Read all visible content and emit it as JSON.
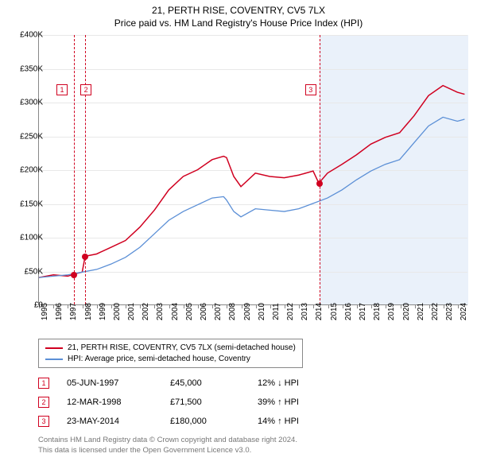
{
  "title_line1": "21, PERTH RISE, COVENTRY, CV5 7LX",
  "title_line2": "Price paid vs. HM Land Registry's House Price Index (HPI)",
  "chart": {
    "type": "line",
    "xlim": [
      1995,
      2024.7
    ],
    "ylim": [
      0,
      400000
    ],
    "ytick_step": 50000,
    "yticks": [
      "£0",
      "£50K",
      "£100K",
      "£150K",
      "£200K",
      "£250K",
      "£300K",
      "£350K",
      "£400K"
    ],
    "xticks": [
      "1995",
      "1996",
      "1997",
      "1998",
      "1999",
      "2000",
      "2001",
      "2002",
      "2003",
      "2004",
      "2005",
      "2006",
      "2007",
      "2008",
      "2009",
      "2010",
      "2011",
      "2012",
      "2013",
      "2014",
      "2015",
      "2016",
      "2017",
      "2018",
      "2019",
      "2020",
      "2021",
      "2022",
      "2023",
      "2024"
    ],
    "background_color": "#ffffff",
    "shaded_region": {
      "x_start": 2014.4,
      "x_end": 2024.7
    },
    "shaded_color": "#eaf1fa",
    "grid_color": "#e8e8e8",
    "axis_color": "#888888",
    "series": [
      {
        "name": "21, PERTH RISE, COVENTRY, CV5 7LX (semi-detached house)",
        "color": "#d00020",
        "line_width": 1.5,
        "data": [
          [
            1995,
            40000
          ],
          [
            1996,
            44000
          ],
          [
            1997,
            42000
          ],
          [
            1997.42,
            45000
          ],
          [
            1998,
            48000
          ],
          [
            1998.2,
            71500
          ],
          [
            1999,
            75000
          ],
          [
            2000,
            85000
          ],
          [
            2001,
            95000
          ],
          [
            2002,
            115000
          ],
          [
            2003,
            140000
          ],
          [
            2004,
            170000
          ],
          [
            2005,
            190000
          ],
          [
            2006,
            200000
          ],
          [
            2007,
            215000
          ],
          [
            2007.8,
            220000
          ],
          [
            2008,
            218000
          ],
          [
            2008.5,
            190000
          ],
          [
            2009,
            175000
          ],
          [
            2010,
            195000
          ],
          [
            2011,
            190000
          ],
          [
            2012,
            188000
          ],
          [
            2013,
            192000
          ],
          [
            2014,
            198000
          ],
          [
            2014.4,
            180000
          ],
          [
            2015,
            195000
          ],
          [
            2016,
            208000
          ],
          [
            2017,
            222000
          ],
          [
            2018,
            238000
          ],
          [
            2019,
            248000
          ],
          [
            2020,
            255000
          ],
          [
            2021,
            280000
          ],
          [
            2022,
            310000
          ],
          [
            2023,
            325000
          ],
          [
            2024,
            315000
          ],
          [
            2024.5,
            312000
          ]
        ]
      },
      {
        "name": "HPI: Average price, semi-detached house, Coventry",
        "color": "#5b8fd6",
        "line_width": 1.3,
        "data": [
          [
            1995,
            40000
          ],
          [
            1996,
            42000
          ],
          [
            1997,
            44000
          ],
          [
            1998,
            48000
          ],
          [
            1999,
            52000
          ],
          [
            2000,
            60000
          ],
          [
            2001,
            70000
          ],
          [
            2002,
            85000
          ],
          [
            2003,
            105000
          ],
          [
            2004,
            125000
          ],
          [
            2005,
            138000
          ],
          [
            2006,
            148000
          ],
          [
            2007,
            158000
          ],
          [
            2007.8,
            160000
          ],
          [
            2008,
            155000
          ],
          [
            2008.5,
            138000
          ],
          [
            2009,
            130000
          ],
          [
            2010,
            142000
          ],
          [
            2011,
            140000
          ],
          [
            2012,
            138000
          ],
          [
            2013,
            142000
          ],
          [
            2014,
            150000
          ],
          [
            2015,
            158000
          ],
          [
            2016,
            170000
          ],
          [
            2017,
            185000
          ],
          [
            2018,
            198000
          ],
          [
            2019,
            208000
          ],
          [
            2020,
            215000
          ],
          [
            2021,
            240000
          ],
          [
            2022,
            265000
          ],
          [
            2023,
            278000
          ],
          [
            2024,
            272000
          ],
          [
            2024.5,
            275000
          ]
        ]
      }
    ],
    "vlines": [
      1997.42,
      1998.2,
      2014.4
    ],
    "vline_color": "#d00020",
    "markers": [
      {
        "n": "1",
        "x": 1997.42,
        "y": 45000,
        "label_y": 62
      },
      {
        "n": "2",
        "x": 1998.2,
        "y": 71500,
        "label_y": 62
      },
      {
        "n": "3",
        "x": 2014.4,
        "y": 180000,
        "label_y": 62
      }
    ]
  },
  "legend": {
    "items": [
      {
        "color": "#d00020",
        "label": "21, PERTH RISE, COVENTRY, CV5 7LX (semi-detached house)"
      },
      {
        "color": "#5b8fd6",
        "label": "HPI: Average price, semi-detached house, Coventry"
      }
    ]
  },
  "table": {
    "rows": [
      {
        "n": "1",
        "date": "05-JUN-1997",
        "price": "£45,000",
        "pct": "12% ↓ HPI"
      },
      {
        "n": "2",
        "date": "12-MAR-1998",
        "price": "£71,500",
        "pct": "39% ↑ HPI"
      },
      {
        "n": "3",
        "date": "23-MAY-2014",
        "price": "£180,000",
        "pct": "14% ↑ HPI"
      }
    ]
  },
  "footer_line1": "Contains HM Land Registry data © Crown copyright and database right 2024.",
  "footer_line2": "This data is licensed under the Open Government Licence v3.0."
}
